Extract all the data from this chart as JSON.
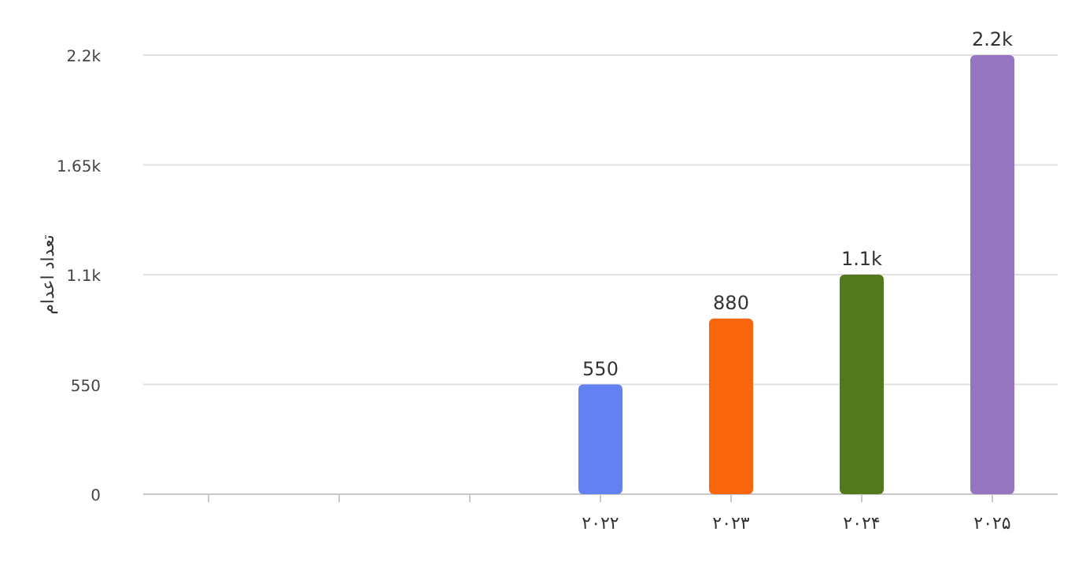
{
  "chart_data": {
    "type": "bar",
    "ylabel": "تعداد اعدام",
    "categories": [
      null,
      null,
      null,
      "۲۰۲۲",
      "۲۰۲۳",
      "۲۰۲۴",
      "۲۰۲۵"
    ],
    "values": [
      null,
      null,
      null,
      550,
      880,
      1100,
      2200
    ],
    "colors": [
      null,
      null,
      null,
      "#6381f0",
      "#f8650d",
      "#527a1d",
      "#9575c0"
    ],
    "value_labels": [
      null,
      null,
      null,
      "550",
      "880",
      "1.1k",
      "2.2k"
    ],
    "ylim": [
      0,
      2200
    ],
    "yticks": [
      0,
      550,
      {
        "value": 1100,
        "label": "1.1k"
      },
      {
        "value": 1650,
        "label": "1.65k"
      },
      {
        "value": 2200,
        "label": "2.2k"
      }
    ],
    "grid": "y"
  }
}
